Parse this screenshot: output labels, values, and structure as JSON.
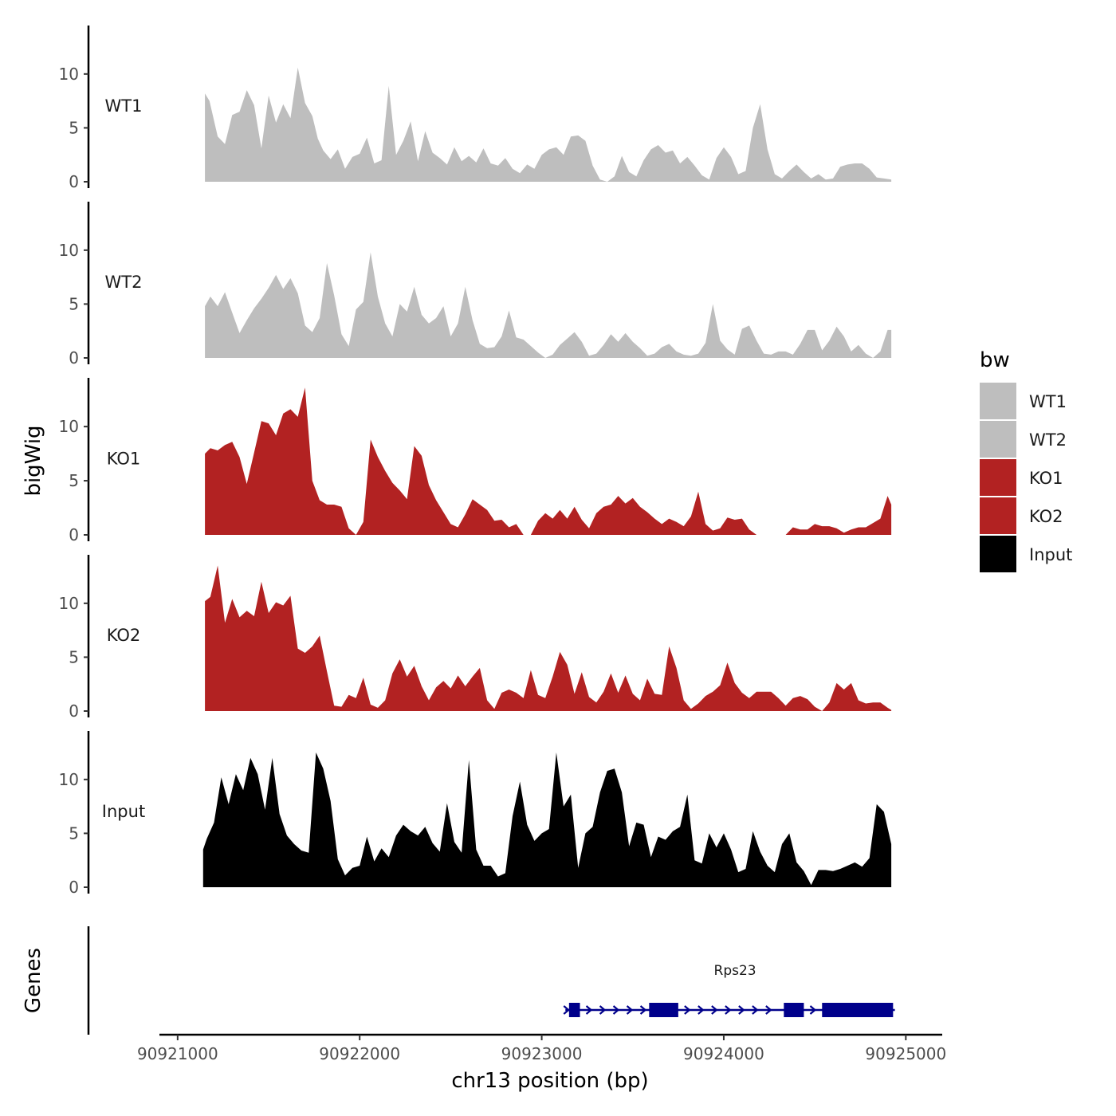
{
  "chart_data": {
    "type": "area",
    "y_axis_title": "bigWig",
    "x_axis_title": "chr13 position (bp)",
    "genes_axis_title": "Genes",
    "xlim": [
      90920900,
      90925200
    ],
    "ylim": [
      0,
      14.5
    ],
    "y_ticks": [
      0,
      5,
      10
    ],
    "y_tick_labels": [
      "0",
      "5",
      "10"
    ],
    "x_ticks": [
      90921000,
      90922000,
      90923000,
      90924000,
      90925000
    ],
    "x_tick_labels": [
      "90921000",
      "90922000",
      "90923000",
      "90924000",
      "90925000"
    ],
    "legend": {
      "title": "bw",
      "position": "right",
      "entries": [
        {
          "label": "WT1",
          "color": "#bebebe"
        },
        {
          "label": "WT2",
          "color": "#bebebe"
        },
        {
          "label": "KO1",
          "color": "#b22222"
        },
        {
          "label": "KO2",
          "color": "#b22222"
        },
        {
          "label": "Input",
          "color": "#000000"
        }
      ]
    },
    "series": [
      {
        "name": "WT1",
        "color": "#bebebe",
        "x": [
          90921150,
          90921175,
          90921220,
          90921260,
          90921300,
          90921340,
          90921380,
          90921420,
          90921460,
          90921500,
          90921540,
          90921580,
          90921620,
          90921660,
          90921700,
          90921740,
          90921770,
          90921800,
          90921840,
          90921880,
          90921920,
          90921960,
          90922000,
          90922040,
          90922080,
          90922120,
          90922160,
          90922200,
          90922240,
          90922280,
          90922320,
          90922360,
          90922400,
          90922440,
          90922480,
          90922520,
          90922560,
          90922600,
          90922640,
          90922680,
          90922720,
          90922760,
          90922800,
          90922840,
          90922880,
          90922920,
          90922960,
          90923000,
          90923040,
          90923080,
          90923120,
          90923160,
          90923200,
          90923240,
          90923280,
          90923320,
          90923360,
          90923400,
          90923440,
          90923480,
          90923520,
          90923560,
          90923600,
          90923640,
          90923680,
          90923720,
          90923760,
          90923800,
          90923840,
          90923880,
          90923920,
          90923960,
          90924000,
          90924040,
          90924080,
          90924120,
          90924160,
          90924200,
          90924240,
          90924280,
          90924320,
          90924360,
          90924400,
          90924440,
          90924480,
          90924520,
          90924560,
          90924600,
          90924640,
          90924680,
          90924720,
          90924760,
          90924800,
          90924840,
          90924880,
          90924920
        ],
        "y": [
          8.2,
          7.5,
          4.2,
          3.5,
          6.2,
          6.5,
          8.5,
          7.1,
          3.1,
          8.0,
          5.5,
          7.2,
          5.9,
          10.6,
          7.3,
          6.1,
          4.0,
          2.9,
          2.1,
          3.0,
          1.2,
          2.3,
          2.6,
          4.1,
          1.7,
          2.0,
          8.9,
          2.5,
          3.8,
          5.6,
          1.9,
          4.7,
          2.7,
          2.2,
          1.6,
          3.2,
          1.9,
          2.4,
          1.8,
          3.1,
          1.7,
          1.5,
          2.2,
          1.2,
          0.8,
          1.6,
          1.2,
          2.5,
          3.0,
          3.2,
          2.5,
          4.2,
          4.3,
          3.8,
          1.5,
          0.2,
          0.0,
          0.5,
          2.4,
          0.9,
          0.5,
          2.0,
          3.0,
          3.4,
          2.7,
          2.9,
          1.7,
          2.3,
          1.5,
          0.6,
          0.2,
          2.2,
          3.2,
          2.3,
          0.7,
          1.0,
          5.0,
          7.2,
          3.0,
          0.7,
          0.3,
          1.0,
          1.6,
          0.9,
          0.3,
          0.7,
          0.2,
          0.3,
          1.4,
          1.6,
          1.7,
          1.7,
          1.2,
          0.4,
          0.3,
          0.2
        ],
        "label": "WT1"
      },
      {
        "name": "WT2",
        "color": "#bebebe",
        "x": [
          90921150,
          90921180,
          90921220,
          90921260,
          90921300,
          90921340,
          90921380,
          90921420,
          90921460,
          90921500,
          90921540,
          90921580,
          90921620,
          90921660,
          90921700,
          90921740,
          90921780,
          90921820,
          90921860,
          90921900,
          90921940,
          90921980,
          90922020,
          90922060,
          90922100,
          90922140,
          90922180,
          90922220,
          90922260,
          90922300,
          90922340,
          90922380,
          90922420,
          90922460,
          90922500,
          90922540,
          90922580,
          90922620,
          90922660,
          90922700,
          90922740,
          90922780,
          90922820,
          90922860,
          90922900,
          90922940,
          90922980,
          90923020,
          90923060,
          90923100,
          90923140,
          90923180,
          90923220,
          90923260,
          90923300,
          90923340,
          90923380,
          90923420,
          90923460,
          90923500,
          90923540,
          90923580,
          90923620,
          90923660,
          90923700,
          90923740,
          90923780,
          90923820,
          90923860,
          90923900,
          90923940,
          90923980,
          90924020,
          90924060,
          90924100,
          90924140,
          90924180,
          90924220,
          90924260,
          90924300,
          90924340,
          90924380,
          90924420,
          90924460,
          90924500,
          90924540,
          90924580,
          90924620,
          90924660,
          90924700,
          90924740,
          90924780,
          90924820,
          90924860,
          90924900,
          90924920
        ],
        "y": [
          4.8,
          5.7,
          4.8,
          6.1,
          4.2,
          2.3,
          3.5,
          4.6,
          5.5,
          6.5,
          7.7,
          6.4,
          7.4,
          6.0,
          3.0,
          2.4,
          3.7,
          8.8,
          5.8,
          2.2,
          1.1,
          4.5,
          5.2,
          9.8,
          5.7,
          3.2,
          2.0,
          5.0,
          4.3,
          6.6,
          4.0,
          3.2,
          3.7,
          4.8,
          2.0,
          3.2,
          6.6,
          3.5,
          1.3,
          0.9,
          1.0,
          2.0,
          4.4,
          1.9,
          1.7,
          1.1,
          0.5,
          0.0,
          0.3,
          1.2,
          1.8,
          2.4,
          1.5,
          0.2,
          0.4,
          1.2,
          2.2,
          1.5,
          2.3,
          1.5,
          0.9,
          0.2,
          0.4,
          1.0,
          1.3,
          0.6,
          0.3,
          0.2,
          0.4,
          1.4,
          5.0,
          1.6,
          0.8,
          0.3,
          2.7,
          3.0,
          1.6,
          0.4,
          0.3,
          0.6,
          0.6,
          0.3,
          1.3,
          2.6,
          2.6,
          0.7,
          1.6,
          2.9,
          2.0,
          0.6,
          1.2,
          0.4,
          0.0,
          0.6,
          2.6,
          2.6
        ],
        "label": "WT2"
      },
      {
        "name": "KO1",
        "color": "#b22222",
        "x": [
          90921150,
          90921180,
          90921220,
          90921260,
          90921300,
          90921340,
          90921380,
          90921420,
          90921460,
          90921500,
          90921540,
          90921580,
          90921620,
          90921660,
          90921700,
          90921740,
          90921780,
          90921820,
          90921860,
          90921900,
          90921940,
          90921980,
          90922020,
          90922060,
          90922100,
          90922140,
          90922180,
          90922220,
          90922260,
          90922300,
          90922340,
          90922380,
          90922420,
          90922460,
          90922500,
          90922540,
          90922580,
          90922620,
          90922660,
          90922700,
          90922740,
          90922780,
          90922820,
          90922860,
          90922900,
          90922940,
          90922980,
          90923020,
          90923060,
          90923100,
          90923140,
          90923180,
          90923220,
          90923260,
          90923300,
          90923340,
          90923380,
          90923420,
          90923460,
          90923500,
          90923540,
          90923580,
          90923620,
          90923660,
          90923700,
          90923740,
          90923780,
          90923820,
          90923860,
          90923900,
          90923940,
          90923980,
          90924020,
          90924060,
          90924100,
          90924140,
          90924180,
          90924220,
          90924260,
          90924300,
          90924340,
          90924380,
          90924420,
          90924460,
          90924500,
          90924540,
          90924580,
          90924620,
          90924660,
          90924700,
          90924740,
          90924780,
          90924820,
          90924860,
          90924900,
          90924920
        ],
        "y": [
          7.5,
          8.0,
          7.8,
          8.3,
          8.6,
          7.2,
          4.7,
          7.6,
          10.5,
          10.3,
          9.2,
          11.2,
          11.6,
          10.9,
          13.6,
          5.0,
          3.2,
          2.8,
          2.8,
          2.6,
          0.6,
          0.0,
          1.2,
          8.8,
          7.2,
          5.9,
          4.8,
          4.1,
          3.3,
          8.2,
          7.3,
          4.6,
          3.2,
          2.1,
          1.0,
          0.7,
          1.9,
          3.3,
          2.8,
          2.3,
          1.3,
          1.4,
          0.7,
          1.0,
          0.0,
          0.0,
          1.3,
          2.0,
          1.5,
          2.3,
          1.5,
          2.6,
          1.4,
          0.6,
          2.0,
          2.6,
          2.8,
          3.6,
          2.9,
          3.4,
          2.6,
          2.1,
          1.5,
          1.0,
          1.5,
          1.2,
          0.8,
          1.7,
          4.0,
          1.0,
          0.4,
          0.6,
          1.6,
          1.4,
          1.5,
          0.5,
          0.0,
          0.0,
          0.0,
          0.0,
          0.0,
          0.7,
          0.5,
          0.5,
          1.0,
          0.8,
          0.8,
          0.6,
          0.2,
          0.5,
          0.7,
          0.7,
          1.1,
          1.5,
          3.6,
          2.8
        ],
        "label": "KO1"
      },
      {
        "name": "KO2",
        "color": "#b22222",
        "x": [
          90921150,
          90921180,
          90921220,
          90921260,
          90921300,
          90921340,
          90921380,
          90921420,
          90921460,
          90921500,
          90921540,
          90921580,
          90921620,
          90921660,
          90921700,
          90921740,
          90921780,
          90921820,
          90921860,
          90921900,
          90921940,
          90921980,
          90922020,
          90922060,
          90922100,
          90922140,
          90922180,
          90922220,
          90922260,
          90922300,
          90922340,
          90922380,
          90922420,
          90922460,
          90922500,
          90922540,
          90922580,
          90922620,
          90922660,
          90922700,
          90922740,
          90922780,
          90922820,
          90922860,
          90922900,
          90922940,
          90922980,
          90923020,
          90923060,
          90923100,
          90923140,
          90923180,
          90923220,
          90923260,
          90923300,
          90923340,
          90923380,
          90923420,
          90923460,
          90923500,
          90923540,
          90923580,
          90923620,
          90923660,
          90923700,
          90923740,
          90923780,
          90923820,
          90923860,
          90923900,
          90923940,
          90923980,
          90924020,
          90924060,
          90924100,
          90924140,
          90924180,
          90924220,
          90924260,
          90924300,
          90924340,
          90924380,
          90924420,
          90924460,
          90924500,
          90924540,
          90924580,
          90924620,
          90924660,
          90924700,
          90924740,
          90924780,
          90924820,
          90924860,
          90924900,
          90924920
        ],
        "y": [
          10.2,
          10.6,
          13.5,
          8.2,
          10.4,
          8.7,
          9.3,
          8.8,
          12.0,
          9.1,
          10.1,
          9.8,
          10.7,
          5.8,
          5.4,
          6.0,
          7.0,
          3.7,
          0.5,
          0.4,
          1.5,
          1.2,
          3.1,
          0.6,
          0.3,
          1.0,
          3.5,
          4.8,
          3.2,
          4.2,
          2.3,
          1.0,
          2.2,
          2.8,
          2.1,
          3.3,
          2.3,
          3.2,
          4.0,
          1.0,
          0.2,
          1.7,
          2.0,
          1.7,
          1.2,
          3.8,
          1.5,
          1.2,
          3.2,
          5.5,
          4.3,
          1.6,
          3.6,
          1.3,
          0.8,
          1.8,
          3.5,
          1.7,
          3.3,
          1.6,
          1.0,
          3.0,
          1.6,
          1.5,
          6.0,
          4.0,
          1.0,
          0.2,
          0.7,
          1.4,
          1.8,
          2.4,
          4.5,
          2.6,
          1.7,
          1.2,
          1.8,
          1.8,
          1.8,
          1.2,
          0.5,
          1.2,
          1.4,
          1.1,
          0.4,
          0.0,
          0.8,
          2.6,
          2.0,
          2.6,
          1.0,
          0.7,
          0.8,
          0.8,
          0.3,
          0.1
        ],
        "label": "KO2"
      },
      {
        "name": "Input",
        "color": "#000000",
        "x": [
          90921140,
          90921160,
          90921200,
          90921240,
          90921280,
          90921320,
          90921360,
          90921400,
          90921440,
          90921480,
          90921520,
          90921560,
          90921600,
          90921640,
          90921680,
          90921720,
          90921760,
          90921800,
          90921840,
          90921880,
          90921920,
          90921960,
          90922000,
          90922040,
          90922080,
          90922120,
          90922160,
          90922200,
          90922240,
          90922280,
          90922320,
          90922360,
          90922400,
          90922440,
          90922480,
          90922520,
          90922560,
          90922600,
          90922640,
          90922680,
          90922720,
          90922760,
          90922800,
          90922840,
          90922880,
          90922920,
          90922960,
          90923000,
          90923040,
          90923080,
          90923120,
          90923160,
          90923200,
          90923240,
          90923280,
          90923320,
          90923360,
          90923400,
          90923440,
          90923480,
          90923520,
          90923560,
          90923600,
          90923640,
          90923680,
          90923720,
          90923760,
          90923800,
          90923840,
          90923880,
          90923920,
          90923960,
          90924000,
          90924040,
          90924080,
          90924120,
          90924160,
          90924200,
          90924240,
          90924280,
          90924320,
          90924360,
          90924400,
          90924440,
          90924480,
          90924520,
          90924560,
          90924600,
          90924640,
          90924680,
          90924720,
          90924760,
          90924800,
          90924840,
          90924880,
          90924920
        ],
        "y": [
          3.5,
          4.5,
          6.0,
          10.2,
          7.7,
          10.5,
          9.0,
          12.0,
          10.5,
          7.2,
          12.0,
          6.8,
          4.8,
          4.0,
          3.4,
          3.2,
          12.5,
          11.0,
          8.0,
          2.6,
          1.1,
          1.8,
          2.0,
          4.7,
          2.4,
          3.6,
          2.8,
          4.8,
          5.8,
          5.2,
          4.8,
          5.6,
          4.1,
          3.3,
          7.8,
          4.2,
          3.2,
          11.8,
          3.5,
          2.0,
          2.0,
          1.0,
          1.3,
          6.6,
          9.8,
          5.8,
          4.3,
          5.0,
          5.4,
          12.5,
          7.5,
          8.6,
          1.8,
          5.0,
          5.6,
          8.8,
          10.8,
          11.0,
          8.8,
          3.8,
          6.0,
          5.8,
          2.8,
          4.7,
          4.4,
          5.2,
          5.6,
          8.6,
          2.5,
          2.2,
          5.0,
          3.7,
          5.0,
          3.5,
          1.4,
          1.7,
          5.2,
          3.3,
          2.0,
          1.4,
          4.0,
          5.0,
          2.3,
          1.5,
          0.2,
          1.6,
          1.6,
          1.5,
          1.7,
          2.0,
          2.3,
          1.9,
          2.7,
          7.7,
          7.0,
          4.0
        ],
        "label": "Input"
      }
    ],
    "genes": [
      {
        "name": "Rps23",
        "color": "#00008b",
        "strand": "+",
        "start": 90923130,
        "end": 90924940,
        "exons": [
          {
            "start": 90923150,
            "end": 90923210
          },
          {
            "start": 90923590,
            "end": 90923750
          },
          {
            "start": 90924330,
            "end": 90924440
          },
          {
            "start": 90924540,
            "end": 90924930
          }
        ]
      }
    ]
  }
}
